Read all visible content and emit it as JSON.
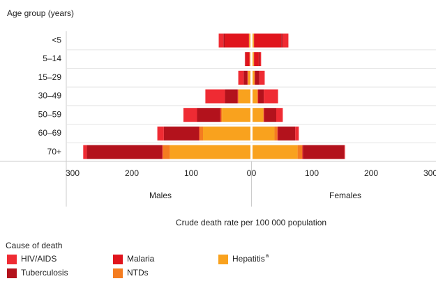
{
  "chart_data": {
    "type": "pyramid",
    "y_label": "Age group (years)",
    "categories": [
      "<5",
      "5–14",
      "15–29",
      "30–49",
      "50–59",
      "60–69",
      "70+"
    ],
    "left_label": "Males",
    "right_label": "Females",
    "x_label": "Crude death rate per 100 000 population",
    "xlim": [
      0,
      300
    ],
    "xticks": [
      0,
      100,
      200,
      300
    ],
    "legend_title": "Cause of death",
    "series": [
      {
        "name": "HIV/AIDS",
        "color": "#ef2b33",
        "males": [
          8,
          1,
          9,
          33,
          23,
          11,
          6
        ],
        "females": [
          10,
          2,
          9,
          24,
          11,
          6,
          1
        ]
      },
      {
        "name": "Tuberculosis",
        "color": "#b3121c",
        "males": [
          2,
          1,
          6,
          21,
          39,
          59,
          127
        ],
        "females": [
          2,
          2,
          7,
          9,
          20,
          29,
          70
        ]
      },
      {
        "name": "Malaria",
        "color": "#e0141c",
        "males": [
          41,
          6,
          1,
          1,
          1,
          1,
          1
        ],
        "females": [
          46,
          8,
          1,
          1,
          1,
          1,
          1
        ]
      },
      {
        "name": "NTDs",
        "color": "#f47c20",
        "males": [
          0.5,
          0.5,
          0.5,
          1,
          2,
          6,
          12
        ],
        "females": [
          0.5,
          0.5,
          0.5,
          1,
          1,
          5,
          8
        ]
      },
      {
        "name": "Hepatitis",
        "name_superscript": "a",
        "color": "#f9a21e",
        "males": [
          2,
          1,
          4,
          20,
          48,
          80,
          136
        ],
        "females": [
          2,
          2,
          3,
          8,
          18,
          37,
          76
        ]
      }
    ]
  }
}
